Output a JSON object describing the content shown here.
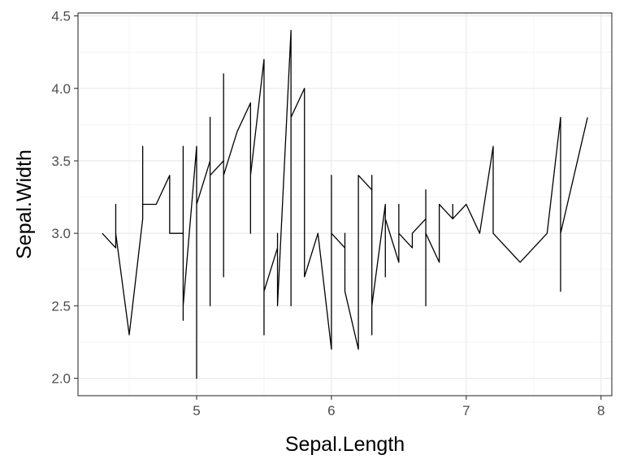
{
  "chart_data": {
    "type": "line",
    "xlabel": "Sepal.Length",
    "ylabel": "Sepal.Width",
    "xlim": [
      4.12,
      8.08
    ],
    "ylim": [
      1.88,
      4.52
    ],
    "x_ticks": [
      5,
      6,
      7,
      8
    ],
    "y_ticks": [
      2.0,
      2.5,
      3.0,
      3.5,
      4.0,
      4.5
    ],
    "x_tick_labels": [
      "5",
      "6",
      "7",
      "8"
    ],
    "y_tick_labels": [
      "2.0",
      "2.5",
      "3.0",
      "3.5",
      "4.0",
      "4.5"
    ],
    "grid": true,
    "series": [
      {
        "color": "#000000",
        "points": [
          [
            4.3,
            3.0
          ],
          [
            4.4,
            2.9
          ],
          [
            4.4,
            3.2
          ],
          [
            4.4,
            3.0
          ],
          [
            4.5,
            2.3
          ],
          [
            4.6,
            3.1
          ],
          [
            4.6,
            3.4
          ],
          [
            4.6,
            3.6
          ],
          [
            4.6,
            3.2
          ],
          [
            4.7,
            3.2
          ],
          [
            4.8,
            3.4
          ],
          [
            4.8,
            3.0
          ],
          [
            4.8,
            3.1
          ],
          [
            4.8,
            3.0
          ],
          [
            4.9,
            3.0
          ],
          [
            4.9,
            3.1
          ],
          [
            4.9,
            3.6
          ],
          [
            4.9,
            2.4
          ],
          [
            4.9,
            2.5
          ],
          [
            5.0,
            3.6
          ],
          [
            5.0,
            3.4
          ],
          [
            5.0,
            3.0
          ],
          [
            5.0,
            2.0
          ],
          [
            5.0,
            2.3
          ],
          [
            5.0,
            3.2
          ],
          [
            5.1,
            3.5
          ],
          [
            5.1,
            3.8
          ],
          [
            5.1,
            3.3
          ],
          [
            5.1,
            2.5
          ],
          [
            5.1,
            3.4
          ],
          [
            5.2,
            3.5
          ],
          [
            5.2,
            4.1
          ],
          [
            5.2,
            2.7
          ],
          [
            5.2,
            3.4
          ],
          [
            5.3,
            3.7
          ],
          [
            5.4,
            3.9
          ],
          [
            5.4,
            3.0
          ],
          [
            5.4,
            3.4
          ],
          [
            5.5,
            4.2
          ],
          [
            5.5,
            2.3
          ],
          [
            5.5,
            2.6
          ],
          [
            5.6,
            2.9
          ],
          [
            5.6,
            3.0
          ],
          [
            5.6,
            2.5
          ],
          [
            5.7,
            4.4
          ],
          [
            5.7,
            2.5
          ],
          [
            5.7,
            2.8
          ],
          [
            5.7,
            3.8
          ],
          [
            5.8,
            4.0
          ],
          [
            5.8,
            2.7
          ],
          [
            5.9,
            3.0
          ],
          [
            6.0,
            2.2
          ],
          [
            6.0,
            3.4
          ],
          [
            6.0,
            3.0
          ],
          [
            6.1,
            2.9
          ],
          [
            6.1,
            3.0
          ],
          [
            6.1,
            2.6
          ],
          [
            6.2,
            2.2
          ],
          [
            6.2,
            3.4
          ],
          [
            6.3,
            3.3
          ],
          [
            6.3,
            3.4
          ],
          [
            6.3,
            2.3
          ],
          [
            6.3,
            2.5
          ],
          [
            6.4,
            3.2
          ],
          [
            6.4,
            2.7
          ],
          [
            6.4,
            3.1
          ],
          [
            6.5,
            2.8
          ],
          [
            6.5,
            3.2
          ],
          [
            6.5,
            3.0
          ],
          [
            6.6,
            2.9
          ],
          [
            6.6,
            3.0
          ],
          [
            6.7,
            3.1
          ],
          [
            6.7,
            3.3
          ],
          [
            6.7,
            2.5
          ],
          [
            6.7,
            3.0
          ],
          [
            6.8,
            2.8
          ],
          [
            6.8,
            3.2
          ],
          [
            6.9,
            3.1
          ],
          [
            6.9,
            3.2
          ],
          [
            6.9,
            3.1
          ],
          [
            7.0,
            3.2
          ],
          [
            7.1,
            3.0
          ],
          [
            7.2,
            3.6
          ],
          [
            7.2,
            3.0
          ],
          [
            7.3,
            2.9
          ],
          [
            7.4,
            2.8
          ],
          [
            7.6,
            3.0
          ],
          [
            7.7,
            3.8
          ],
          [
            7.7,
            2.6
          ],
          [
            7.7,
            3.0
          ],
          [
            7.9,
            3.8
          ]
        ]
      }
    ]
  }
}
